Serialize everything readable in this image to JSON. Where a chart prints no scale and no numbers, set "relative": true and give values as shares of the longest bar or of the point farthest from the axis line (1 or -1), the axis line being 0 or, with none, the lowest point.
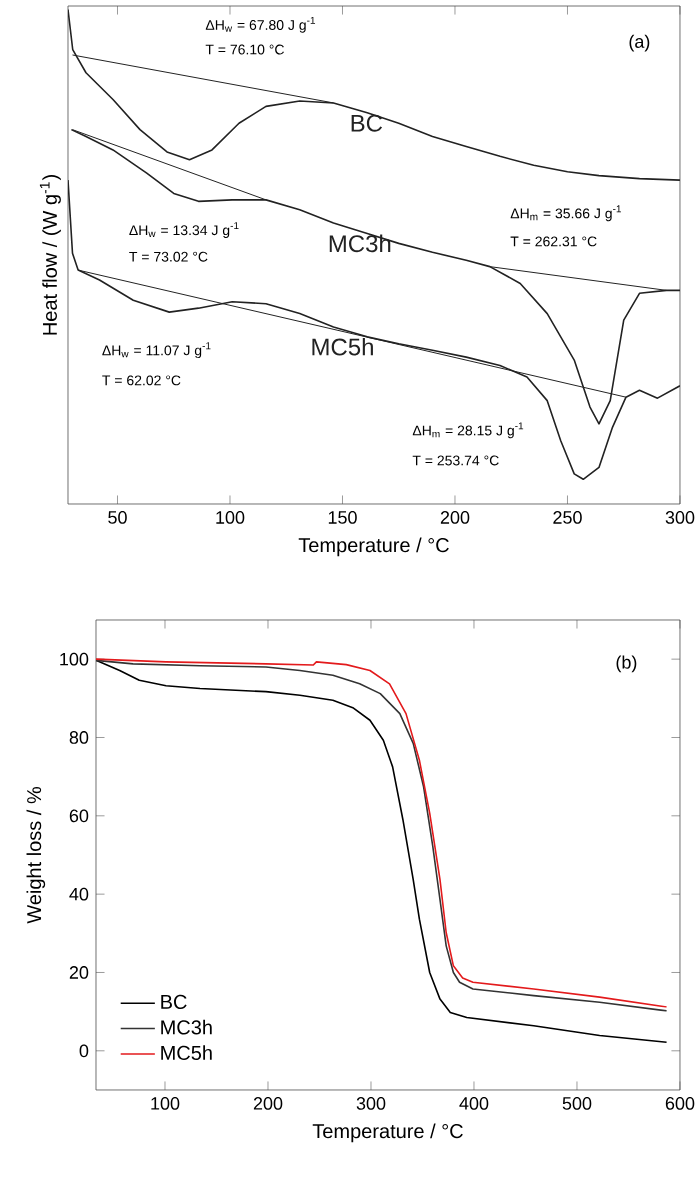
{
  "chart_data": [
    {
      "type": "line",
      "relative": true,
      "xlabel": "Temperature / °C",
      "ylabel": "Heat flow / (W g$^{-1}$)",
      "xlim": [
        28,
        300
      ],
      "xticks": [
        50,
        100,
        150,
        200,
        250,
        300
      ],
      "legend": false,
      "annotations": [
        "(a)",
        "ΔH$_{w}$ = 67.80 J g$^{-1}$",
        "T = 76.10 °C",
        "ΔH$_{w}$ = 13.34 J g$^{-1}$",
        "T = 73.02 °C",
        "ΔH$_{m}$ = 35.66 J g$^{-1}$",
        "T = 262.31 °C",
        "ΔH$_{w}$ = 11.07 J g$^{-1}$",
        "T = 62.02 °C",
        "ΔH$_{m}$ = 28.15 J g$^{-1}$",
        "T = 253.74 °C"
      ],
      "series": [
        {
          "name": "BC",
          "color": "#222222",
          "x": [
            28,
            30.1,
            36,
            48,
            60,
            72,
            82,
            92,
            104,
            116,
            131,
            146,
            161,
            175,
            190,
            205,
            220,
            235,
            250,
            264,
            282,
            300
          ],
          "values": [
            1.0,
            0.919,
            0.872,
            0.818,
            0.757,
            0.712,
            0.696,
            0.716,
            0.77,
            0.804,
            0.815,
            0.811,
            0.791,
            0.77,
            0.743,
            0.723,
            0.703,
            0.685,
            0.672,
            0.664,
            0.658,
            0.655
          ]
        },
        {
          "name": "MC3h",
          "color": "#222222",
          "x": [
            29.5,
            36,
            48,
            63,
            75,
            86,
            101,
            116,
            131,
            146,
            161,
            175,
            190,
            205,
            215.5,
            229,
            241,
            253,
            260,
            264,
            269,
            275,
            282,
            294,
            300
          ],
          "values": [
            0.757,
            0.743,
            0.716,
            0.669,
            0.628,
            0.612,
            0.615,
            0.615,
            0.595,
            0.568,
            0.547,
            0.527,
            0.509,
            0.493,
            0.48,
            0.446,
            0.385,
            0.291,
            0.196,
            0.162,
            0.209,
            0.372,
            0.426,
            0.432,
            0.432
          ]
        },
        {
          "name": "MC5h",
          "color": "#222222",
          "x": [
            28,
            30,
            32.5,
            42,
            57,
            73,
            86,
            101,
            116,
            131,
            146,
            161,
            175,
            190,
            205,
            220,
            232,
            241,
            247,
            253,
            257,
            264,
            270,
            276,
            282,
            290,
            300
          ],
          "values": [
            0.655,
            0.507,
            0.473,
            0.453,
            0.412,
            0.388,
            0.396,
            0.409,
            0.405,
            0.385,
            0.358,
            0.338,
            0.324,
            0.311,
            0.297,
            0.28,
            0.257,
            0.209,
            0.128,
            0.061,
            0.05,
            0.074,
            0.155,
            0.216,
            0.23,
            0.214,
            0.239
          ]
        },
        {
          "color": "#222222",
          "x": [
            30,
            146
          ],
          "values": [
            0.908,
            0.811
          ]
        },
        {
          "color": "#222222",
          "x": [
            30,
            116
          ],
          "values": [
            0.757,
            0.615
          ]
        },
        {
          "color": "#222222",
          "x": [
            215.5,
            294
          ],
          "values": [
            0.48,
            0.432
          ]
        },
        {
          "color": "#222222",
          "x": [
            32.5,
            276
          ],
          "values": [
            0.473,
            0.216
          ]
        }
      ]
    },
    {
      "type": "line",
      "xlabel": "Temperature / °C",
      "ylabel": "Weight loss / %",
      "xlim": [
        33,
        600
      ],
      "xticks": [
        100,
        200,
        300,
        400,
        500,
        600
      ],
      "ylim": [
        -10,
        110
      ],
      "yticks": [
        0,
        20,
        40,
        60,
        80,
        100
      ],
      "legend": "bottom left",
      "annotations": [
        "(b)"
      ],
      "series": [
        {
          "name": "BC",
          "color": "#000000",
          "x": [
            33,
            56,
            75,
            101,
            134,
            198,
            231,
            263,
            283,
            299,
            312,
            321,
            331,
            341,
            347,
            357,
            367,
            377,
            393,
            458,
            522,
            587
          ],
          "values": [
            99.7,
            97.1,
            94.6,
            93.2,
            92.5,
            91.7,
            90.8,
            89.5,
            87.5,
            84.4,
            79.3,
            72.5,
            59,
            43.7,
            33.6,
            20,
            13.2,
            9.8,
            8.5,
            6.4,
            3.9,
            2.2
          ]
        },
        {
          "name": "MC3h",
          "color": "#333333",
          "x": [
            33,
            69,
            134,
            198,
            231,
            263,
            289,
            309,
            328,
            341,
            351,
            360,
            367,
            373,
            380,
            386,
            399,
            458,
            522,
            587
          ],
          "values": [
            99.7,
            98.8,
            98.3,
            98.0,
            97.1,
            95.9,
            93.7,
            91.2,
            86.1,
            78.5,
            67.5,
            52.2,
            38.6,
            26.8,
            20,
            17.5,
            15.8,
            14.1,
            12.4,
            10.2
          ]
        },
        {
          "name": "MC5h",
          "color": "#e31a1c",
          "x": [
            33,
            101,
            198,
            244,
            247,
            276,
            299,
            318,
            334,
            347,
            357,
            367,
            373,
            380,
            389,
            399,
            458,
            522,
            587
          ],
          "values": [
            100,
            99.3,
            98.8,
            98.5,
            99.3,
            98.6,
            97.1,
            93.7,
            86.1,
            74.2,
            60.7,
            43.7,
            30.2,
            21.7,
            18.6,
            17.5,
            15.8,
            13.7,
            11.2
          ]
        }
      ]
    }
  ]
}
